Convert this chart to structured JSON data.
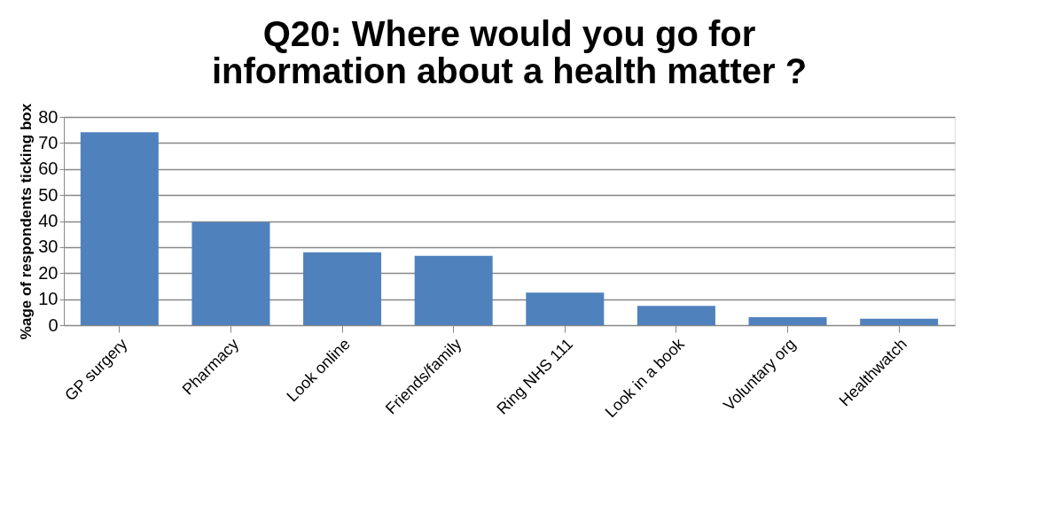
{
  "chart_data": {
    "type": "bar",
    "title": [
      "Q20: Where would you go for",
      "information about a health matter ?"
    ],
    "ylabel": "%age of respondents ticking box",
    "categories": [
      "GP surgery",
      "Pharmacy",
      "Look online",
      "Friends/family",
      "Ring NHS 111",
      "Look in a book",
      "Voluntary org",
      "Healthwatch"
    ],
    "values": [
      74.1,
      39.6,
      28,
      26.6,
      12.5,
      7.4,
      3.1,
      2.5
    ],
    "color": "#4f81bd",
    "ylim": [
      0,
      80
    ],
    "yticks": [
      0,
      10,
      20,
      30,
      40,
      50,
      60,
      70,
      80
    ],
    "grid": "y"
  }
}
